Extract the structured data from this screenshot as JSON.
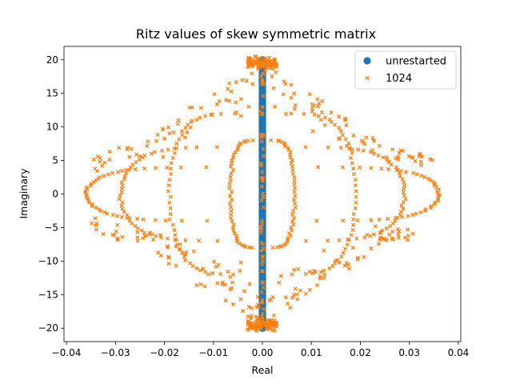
{
  "chart_data": {
    "type": "scatter",
    "title": "Ritz values of skew symmetric matrix",
    "xlabel": "Real",
    "ylabel": "Imaginary",
    "xlim": [
      -0.0405,
      0.0405
    ],
    "ylim": [
      -22,
      22
    ],
    "xticks": [
      -0.04,
      -0.03,
      -0.02,
      -0.01,
      0.0,
      0.01,
      0.02,
      0.03,
      0.04
    ],
    "xtick_labels": [
      "−0.04",
      "−0.03",
      "−0.02",
      "−0.01",
      "0.00",
      "0.01",
      "0.02",
      "0.03",
      "0.04"
    ],
    "yticks": [
      -20,
      -15,
      -10,
      -5,
      0,
      5,
      10,
      15,
      20
    ],
    "ytick_labels": [
      "−20",
      "−15",
      "−10",
      "−5",
      "0",
      "5",
      "10",
      "15",
      "20"
    ],
    "grid": false,
    "legend_placement": "top-right",
    "series": [
      {
        "name": "unrestarted",
        "marker": "circle",
        "color": "#1f77b4",
        "description_points": "dense column of points at real = 0.000, imaginary from -20 to 20",
        "x": 0.0,
        "y_range": [
          -20,
          20
        ],
        "count": 400
      },
      {
        "name": "1024",
        "marker": "x",
        "color": "#ff7f0e",
        "loops": [
          {
            "semi_axis_real": 0.0065,
            "imag_half_extent": 8.0
          },
          {
            "semi_axis_real": 0.019,
            "imag_half_extent": 12.0
          },
          {
            "semi_axis_real": 0.029,
            "imag_half_extent": 7.0
          },
          {
            "semi_axis_real": 0.036,
            "imag_half_extent": 4.0
          }
        ],
        "cap_clusters": [
          {
            "imag_center": 19.5,
            "real_half_width": 0.003
          },
          {
            "imag_center": -19.5,
            "real_half_width": 0.003
          }
        ],
        "envelope_points": [
          [
            0.035,
            5
          ],
          [
            0.03,
            7
          ],
          [
            0.025,
            7
          ],
          [
            0.02,
            10
          ],
          [
            0.015,
            13
          ],
          [
            0.01,
            15
          ],
          [
            0.005,
            17.5
          ],
          [
            0.0,
            20
          ]
        ]
      }
    ]
  }
}
